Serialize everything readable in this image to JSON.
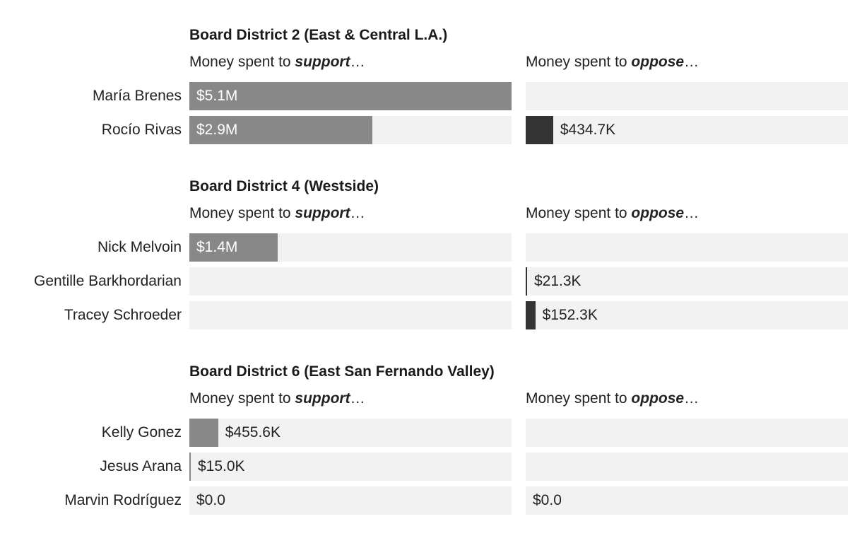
{
  "colors": {
    "support_bar": "#888888",
    "oppose_bar": "#333333",
    "track": "#f2f2f2",
    "label_inside": "#ffffff",
    "label_outside": "#222222"
  },
  "columns": {
    "support": {
      "prefix": "Money spent to ",
      "emph": "support",
      "suffix": "…"
    },
    "oppose": {
      "prefix": "Money spent to ",
      "emph": "oppose",
      "suffix": "…"
    }
  },
  "chart_data": {
    "type": "bar",
    "orientation": "horizontal",
    "xlim": [
      0,
      5100000
    ],
    "groups": [
      {
        "title": "Board District 2 (East & Central L.A.)",
        "candidates": [
          {
            "name": "María Brenes",
            "support": 5100000,
            "support_label": "$5.1M",
            "oppose": 0,
            "oppose_label": ""
          },
          {
            "name": "Rocío Rivas",
            "support": 2900000,
            "support_label": "$2.9M",
            "oppose": 434700,
            "oppose_label": "$434.7K"
          }
        ]
      },
      {
        "title": "Board District 4 (Westside)",
        "candidates": [
          {
            "name": "Nick Melvoin",
            "support": 1400000,
            "support_label": "$1.4M",
            "oppose": 0,
            "oppose_label": ""
          },
          {
            "name": "Gentille Barkhordarian",
            "support": 0,
            "support_label": "",
            "oppose": 21300,
            "oppose_label": "$21.3K"
          },
          {
            "name": "Tracey Schroeder",
            "support": 0,
            "support_label": "",
            "oppose": 152300,
            "oppose_label": "$152.3K"
          }
        ]
      },
      {
        "title": "Board District 6 (East San Fernando Valley)",
        "candidates": [
          {
            "name": "Kelly Gonez",
            "support": 455600,
            "support_label": "$455.6K",
            "oppose": 0,
            "oppose_label": ""
          },
          {
            "name": "Jesus Arana",
            "support": 15000,
            "support_label": "$15.0K",
            "oppose": 0,
            "oppose_label": ""
          },
          {
            "name": "Marvin Rodríguez",
            "support": 0,
            "support_label": "$0.0",
            "oppose": 0,
            "oppose_label": "$0.0"
          }
        ]
      }
    ]
  }
}
